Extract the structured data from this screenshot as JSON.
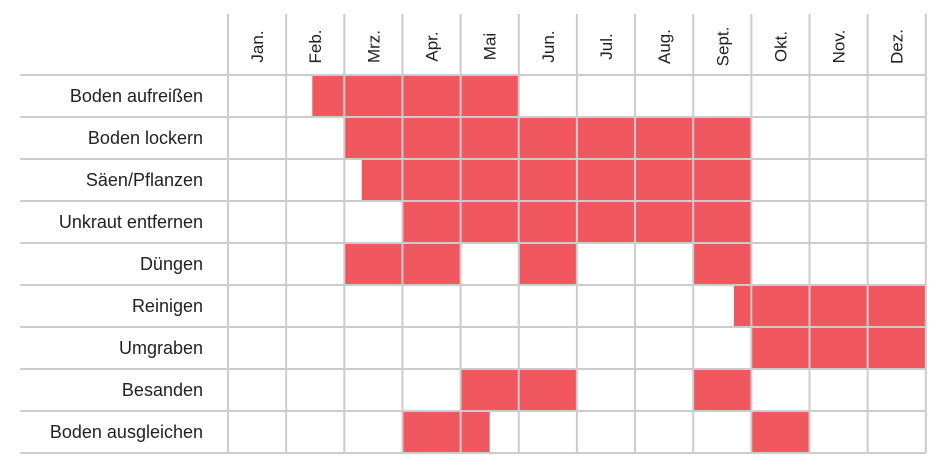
{
  "chart_data": {
    "type": "gantt",
    "title": "",
    "months": [
      "Jan.",
      "Feb.",
      "Mrz.",
      "Apr.",
      "Mai",
      "Jun.",
      "Jul.",
      "Aug.",
      "Sept.",
      "Okt.",
      "Nov.",
      "Dez."
    ],
    "tasks": [
      {
        "label": "Boden aufreißen",
        "periods": [
          [
            1.45,
            5.0
          ]
        ]
      },
      {
        "label": "Boden lockern",
        "periods": [
          [
            2.0,
            9.0
          ]
        ]
      },
      {
        "label": "Säen/Pflanzen",
        "periods": [
          [
            2.3,
            9.0
          ]
        ]
      },
      {
        "label": "Unkraut entfernen",
        "periods": [
          [
            3.0,
            9.0
          ]
        ]
      },
      {
        "label": "Düngen",
        "periods": [
          [
            2.0,
            4.0
          ],
          [
            5.0,
            6.0
          ],
          [
            8.0,
            9.0
          ]
        ]
      },
      {
        "label": "Reinigen",
        "periods": [
          [
            8.7,
            12.0
          ]
        ]
      },
      {
        "label": "Umgraben",
        "periods": [
          [
            9.0,
            12.0
          ]
        ]
      },
      {
        "label": "Besanden",
        "periods": [
          [
            4.0,
            6.0
          ],
          [
            8.0,
            9.0
          ]
        ]
      },
      {
        "label": "Boden ausgleichen",
        "periods": [
          [
            3.0,
            4.5
          ],
          [
            9.0,
            10.0
          ]
        ]
      }
    ],
    "bar_color": "#f0575e",
    "grid_color": "#cccccc"
  }
}
